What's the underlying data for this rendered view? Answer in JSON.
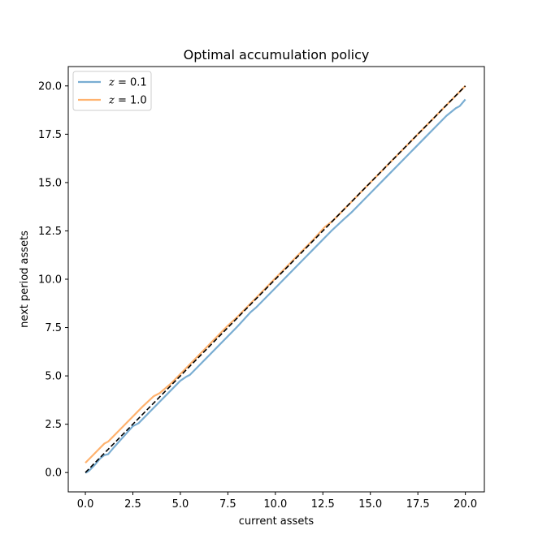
{
  "chart_data": {
    "type": "line",
    "title": "Optimal accumulation policy",
    "xlabel": "current assets",
    "ylabel": "next period assets",
    "xlim": [
      -0.9,
      21.0
    ],
    "ylim": [
      -1.0,
      21.0
    ],
    "xticks": [
      0.0,
      2.5,
      5.0,
      7.5,
      10.0,
      12.5,
      15.0,
      17.5,
      20.0
    ],
    "xtick_labels": [
      "0.0",
      "2.5",
      "5.0",
      "7.5",
      "10.0",
      "12.5",
      "15.0",
      "17.5",
      "20.0"
    ],
    "yticks": [
      0.0,
      2.5,
      5.0,
      7.5,
      10.0,
      12.5,
      15.0,
      17.5,
      20.0
    ],
    "ytick_labels": [
      "0.0",
      "2.5",
      "5.0",
      "7.5",
      "10.0",
      "12.5",
      "15.0",
      "17.5",
      "20.0"
    ],
    "grid": false,
    "legend_position": "upper-left",
    "series": [
      {
        "name": "z = 0.1",
        "label_var": "z",
        "label_op": " = ",
        "label_val": "0.1",
        "color": "#1f77b4",
        "opacity": 0.6,
        "x": [
          0.0,
          0.05,
          0.2,
          0.5,
          0.8,
          1.0,
          1.2,
          1.5,
          2.0,
          2.5,
          2.8,
          3.0,
          3.5,
          4.0,
          4.5,
          5.0,
          5.3,
          5.5,
          6.0,
          7.0,
          8.0,
          8.7,
          9.0,
          10.0,
          11.0,
          12.0,
          13.0,
          13.6,
          14.0,
          15.0,
          16.0,
          17.0,
          18.0,
          19.0,
          19.5,
          19.7,
          20.0
        ],
        "y": [
          0.0,
          0.0,
          0.1,
          0.4,
          0.75,
          0.9,
          0.95,
          1.3,
          1.85,
          2.4,
          2.55,
          2.75,
          3.25,
          3.75,
          4.25,
          4.75,
          4.95,
          5.05,
          5.55,
          6.55,
          7.55,
          8.3,
          8.55,
          9.55,
          10.55,
          11.55,
          12.55,
          13.1,
          13.45,
          14.45,
          15.45,
          16.45,
          17.45,
          18.45,
          18.85,
          18.95,
          19.3
        ]
      },
      {
        "name": "z = 1.0",
        "label_var": "z",
        "label_op": " = ",
        "label_val": "1.0",
        "color": "#ff7f0e",
        "opacity": 0.6,
        "x": [
          0.0,
          0.5,
          1.0,
          1.2,
          2.0,
          3.0,
          3.6,
          3.9,
          4.5,
          5.0,
          6.0,
          7.0,
          7.5,
          8.0,
          9.0,
          10.0,
          11.0,
          12.0,
          12.6,
          13.0,
          14.0,
          15.0,
          16.0,
          17.0,
          18.0,
          19.0,
          20.0
        ],
        "y": [
          0.5,
          1.0,
          1.5,
          1.6,
          2.4,
          3.4,
          3.95,
          4.1,
          4.6,
          5.1,
          6.1,
          7.1,
          7.6,
          8.05,
          9.05,
          10.05,
          11.05,
          12.05,
          12.7,
          13.0,
          14.0,
          15.0,
          16.0,
          17.0,
          18.0,
          19.0,
          20.0
        ]
      }
    ],
    "reference_line": {
      "x": [
        0.0,
        20.0
      ],
      "y": [
        0.0,
        20.0
      ],
      "color": "#000000",
      "style": "dashed"
    }
  }
}
